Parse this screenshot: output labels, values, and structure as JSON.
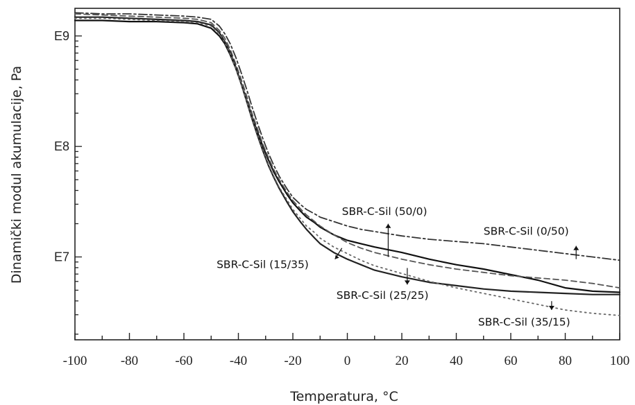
{
  "chart_data": {
    "type": "line",
    "title": "",
    "xlabel": "Temperatura, °C",
    "ylabel": "Dinamički modul akumulacije, Pa",
    "xlim": [
      -100,
      100
    ],
    "ylim_log10": [
      6.25,
      9.25
    ],
    "y_scale": "log",
    "x_ticks": [
      -100,
      -80,
      -60,
      -40,
      -20,
      0,
      20,
      40,
      60,
      80,
      100
    ],
    "x_tick_labels": [
      "-100",
      "-80",
      "-60",
      "-40",
      "-20",
      "0",
      "20",
      "40",
      "60",
      "80",
      "100"
    ],
    "y_ticks_log10": [
      7,
      8,
      9
    ],
    "y_tick_labels": [
      "E7",
      "E8",
      "E9"
    ],
    "grid": false,
    "legend": "none",
    "annotations": [
      {
        "text": "SBR-C-Sil (50/0)",
        "x": -2,
        "y_log10": 7.38,
        "arrow": "up",
        "arrow_x": 15,
        "arrow_from": 7.0,
        "arrow_to": 7.3
      },
      {
        "text": "SBR-C-Sil (0/50)",
        "x": 50,
        "y_log10": 7.2,
        "arrow": "up",
        "arrow_x": 84,
        "arrow_from": 6.98,
        "arrow_to": 7.1
      },
      {
        "text": "SBR-C-Sil (15/35)",
        "x": -48,
        "y_log10": 6.9,
        "arrow": "down-left",
        "arrow_x": -2,
        "arrow_from": 7.08,
        "arrow_to": 6.98
      },
      {
        "text": "SBR-C-Sil (25/25)",
        "x": -4,
        "y_log10": 6.62,
        "arrow": "down",
        "arrow_x": 22,
        "arrow_from": 6.9,
        "arrow_to": 6.75
      },
      {
        "text": "SBR-C-Sil (35/15)",
        "x": 48,
        "y_log10": 6.38,
        "arrow": "down",
        "arrow_x": 75,
        "arrow_from": 6.6,
        "arrow_to": 6.52
      }
    ],
    "x": [
      -100,
      -90,
      -80,
      -70,
      -60,
      -55,
      -50,
      -47,
      -45,
      -43,
      -41,
      -39,
      -37,
      -35,
      -33,
      -31,
      -29,
      -27,
      -25,
      -22,
      -20,
      -17,
      -15,
      -12,
      -10,
      -5,
      0,
      5,
      10,
      20,
      30,
      40,
      50,
      60,
      70,
      80,
      90,
      100
    ],
    "series": [
      {
        "name": "SBR-C-Sil (50/0)",
        "style": "solid",
        "color": "#111111",
        "values": [
          9.14,
          9.14,
          9.13,
          9.13,
          9.12,
          9.11,
          9.07,
          9.0,
          8.93,
          8.83,
          8.71,
          8.57,
          8.42,
          8.27,
          8.13,
          8.0,
          7.88,
          7.77,
          7.68,
          7.56,
          7.49,
          7.41,
          7.36,
          7.31,
          7.27,
          7.2,
          7.15,
          7.12,
          7.09,
          7.04,
          6.98,
          6.93,
          6.89,
          6.84,
          6.79,
          6.72,
          6.69,
          6.68
        ]
      },
      {
        "name": "SBR-C-Sil (0/50)",
        "style": "dashdot",
        "color": "#333333",
        "values": [
          9.21,
          9.2,
          9.2,
          9.19,
          9.18,
          9.17,
          9.15,
          9.09,
          9.02,
          8.93,
          8.81,
          8.67,
          8.52,
          8.36,
          8.21,
          8.07,
          7.94,
          7.83,
          7.73,
          7.61,
          7.54,
          7.47,
          7.43,
          7.39,
          7.36,
          7.32,
          7.28,
          7.25,
          7.23,
          7.19,
          7.16,
          7.14,
          7.12,
          7.09,
          7.06,
          7.03,
          7.0,
          6.97
        ]
      },
      {
        "name": "SBR-C-Sil (15/35)",
        "style": "dashed",
        "color": "#555555",
        "values": [
          9.2,
          9.19,
          9.18,
          9.17,
          9.16,
          9.15,
          9.12,
          9.05,
          8.98,
          8.88,
          8.75,
          8.61,
          8.46,
          8.3,
          8.16,
          8.02,
          7.9,
          7.79,
          7.7,
          7.58,
          7.51,
          7.43,
          7.38,
          7.32,
          7.28,
          7.2,
          7.13,
          7.08,
          7.04,
          6.98,
          6.93,
          6.89,
          6.86,
          6.83,
          6.81,
          6.79,
          6.76,
          6.72
        ]
      },
      {
        "name": "SBR-C-Sil (25/25)",
        "style": "solid",
        "color": "#222222",
        "values": [
          9.17,
          9.17,
          9.16,
          9.15,
          9.14,
          9.13,
          9.1,
          9.03,
          8.95,
          8.85,
          8.72,
          8.57,
          8.41,
          8.25,
          8.1,
          7.96,
          7.83,
          7.72,
          7.62,
          7.49,
          7.41,
          7.31,
          7.25,
          7.17,
          7.12,
          7.04,
          6.98,
          6.93,
          6.88,
          6.82,
          6.77,
          6.74,
          6.71,
          6.69,
          6.68,
          6.67,
          6.66,
          6.66
        ]
      },
      {
        "name": "SBR-C-Sil (35/15)",
        "style": "dotted",
        "color": "#666666",
        "values": [
          9.16,
          9.16,
          9.15,
          9.14,
          9.13,
          9.12,
          9.09,
          9.02,
          8.94,
          8.84,
          8.71,
          8.57,
          8.41,
          8.26,
          8.11,
          7.97,
          7.84,
          7.73,
          7.63,
          7.51,
          7.43,
          7.34,
          7.28,
          7.22,
          7.17,
          7.09,
          7.03,
          6.97,
          6.92,
          6.85,
          6.78,
          6.72,
          6.67,
          6.62,
          6.57,
          6.52,
          6.49,
          6.47
        ]
      }
    ]
  }
}
